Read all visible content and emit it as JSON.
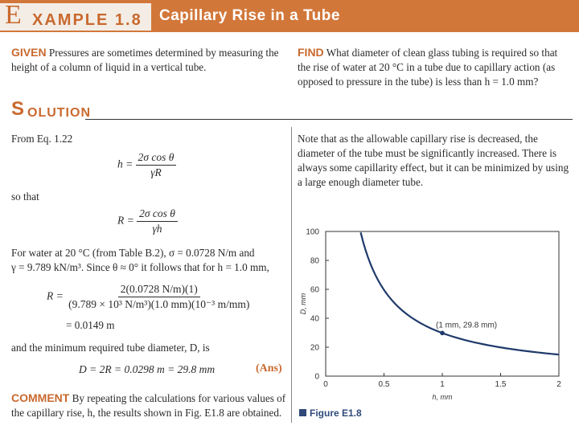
{
  "header": {
    "example_first_letter": "E",
    "example_rest": "XAMPLE  1.8",
    "title": "Capillary Rise in a Tube"
  },
  "given": {
    "label": "GIVEN",
    "text": "Pressures are sometimes determined by measuring the height of a column of liquid in a vertical tube."
  },
  "find": {
    "label": "FIND",
    "text": "What diameter of clean glass tubing is required so that the rise of water at 20 °C in a tube due to capillary action (as opposed to pressure in the tube) is less than h = 1.0 mm?"
  },
  "solution": {
    "first_letter": "S",
    "rest": "OLUTION",
    "from_eq": "From Eq. 1.22",
    "eq1_lhs": "h =",
    "eq1_num": "2σ cos θ",
    "eq1_den": "γR",
    "so_that": "so that",
    "eq2_lhs": "R =",
    "eq2_num": "2σ cos θ",
    "eq2_den": "γh",
    "water_line1": "For water at 20 °C (from Table B.2), σ = 0.0728 N/m and",
    "water_line2": "γ = 9.789 kN/m³. Since θ ≈ 0° it follows that for h = 1.0 mm,",
    "eq3_lhs": "R =",
    "eq3_num": "2(0.0728 N/m)(1)",
    "eq3_den": "(9.789 × 10³ N/m³)(1.0 mm)(10⁻³ m/mm)",
    "eq3_result": "= 0.0149 m",
    "diam_text": "and the minimum required tube diameter, D, is",
    "eq4": "D = 2R = 0.0298 m = 29.8 mm",
    "ans": "(Ans)"
  },
  "comment": {
    "label": "COMMENT",
    "text": "By repeating the calculations for various values of the capillary rise, h, the results shown in Fig. E1.8 are obtained."
  },
  "note": {
    "text": "Note that as the allowable capillary rise is decreased, the diameter of the tube must be significantly increased. There is always some capillarity effect, but it can be minimized by using a large enough diameter tube."
  },
  "figure": {
    "caption": "Figure E1.8"
  },
  "chart_data": {
    "type": "line",
    "xlabel": "h, mm",
    "ylabel": "D, mm",
    "xlim": [
      0,
      2
    ],
    "ylim": [
      0,
      100
    ],
    "x_ticks": [
      "0",
      "0.5",
      "1",
      "1.5",
      "2"
    ],
    "y_ticks": [
      "0",
      "20",
      "40",
      "60",
      "80",
      "100"
    ],
    "series": [
      {
        "x": [
          0.3,
          0.35,
          0.4,
          0.5,
          0.6,
          0.7,
          0.8,
          0.9,
          1.0,
          1.2,
          1.4,
          1.6,
          1.8,
          2.0
        ],
        "values": [
          99.3,
          85.1,
          74.5,
          59.6,
          49.7,
          42.6,
          37.3,
          33.1,
          29.8,
          24.8,
          21.3,
          18.6,
          16.6,
          14.9
        ]
      }
    ],
    "annotation": {
      "x": 1.0,
      "y": 29.8,
      "label": "(1 mm, 29.8 mm)"
    },
    "color": "#1f3a6b",
    "grid": false
  }
}
